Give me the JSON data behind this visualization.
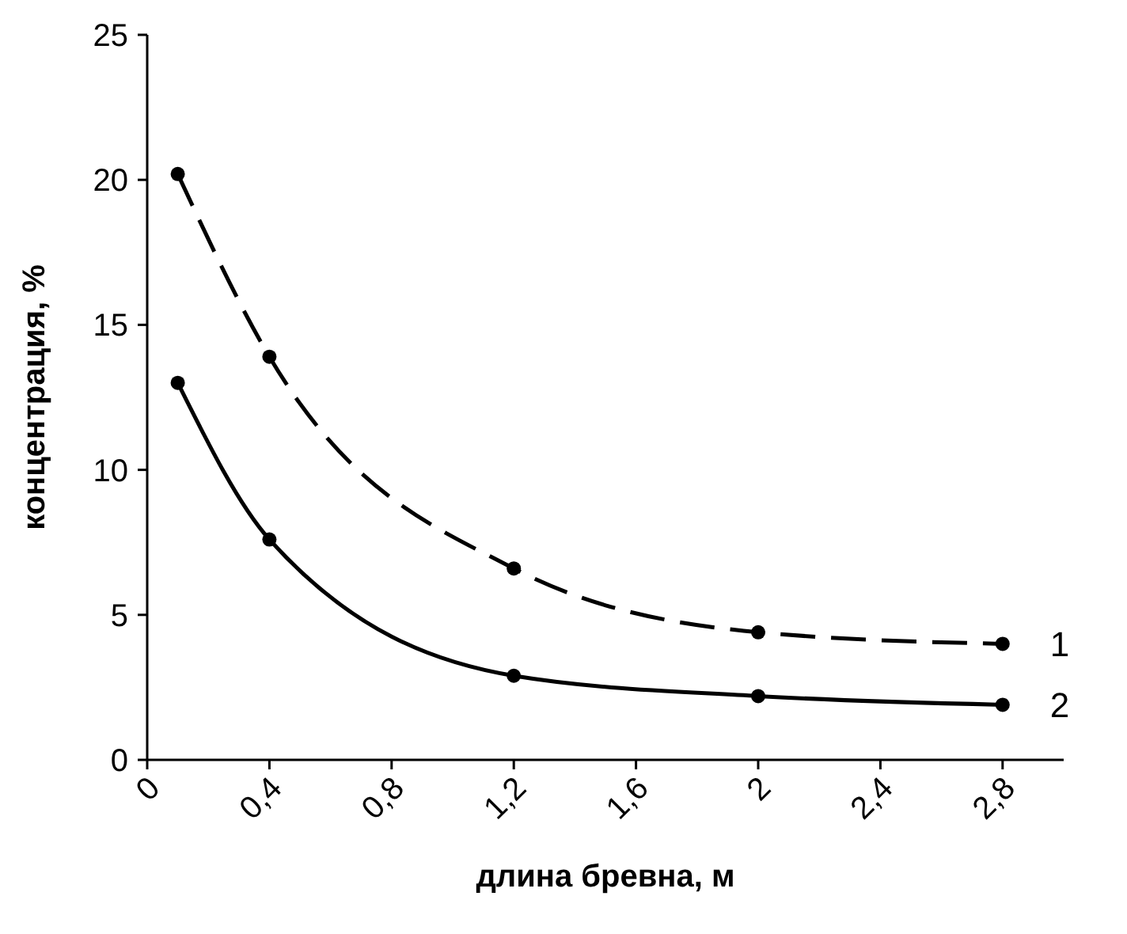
{
  "chart_data": {
    "type": "line",
    "xlabel": "длина бревна, м",
    "ylabel": "концентрация, %",
    "xlim": [
      0,
      3
    ],
    "xticks": [
      0,
      {
        "value": 0.4,
        "label": "0,4"
      },
      {
        "value": 0.8,
        "label": "0,8"
      },
      {
        "value": 1.2,
        "label": "1,2"
      },
      {
        "value": 1.6,
        "label": "1,6"
      },
      2,
      {
        "value": 2.4,
        "label": "2,4"
      },
      {
        "value": 2.8,
        "label": "2,8"
      }
    ],
    "ylim": [
      0,
      25
    ],
    "yticks": [
      0,
      5,
      10,
      15,
      20,
      25
    ],
    "x": [
      0.1,
      0.4,
      1.2,
      2,
      2.8
    ],
    "series": [
      {
        "name": "1",
        "color": "#000000",
        "values": [
          20.2,
          13.9,
          6.6,
          4.4,
          4.0
        ],
        "line_style": "dashed"
      },
      {
        "name": "2",
        "color": "#000000",
        "values": [
          13,
          7.6,
          2.9,
          2.2,
          1.9
        ],
        "line_style": "solid"
      }
    ],
    "marker": "circle",
    "grid": false
  }
}
